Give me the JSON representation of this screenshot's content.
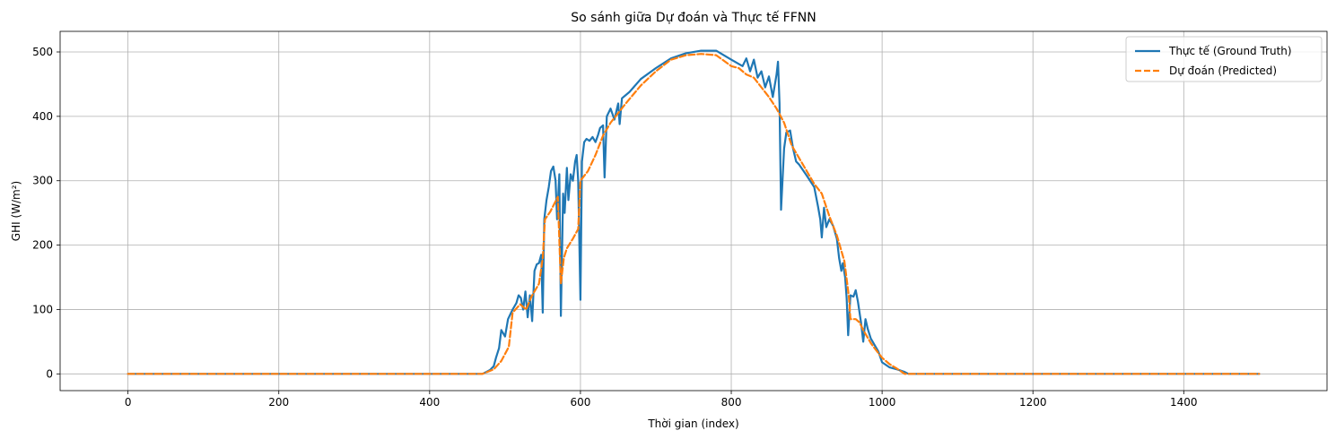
{
  "chart_data": {
    "type": "line",
    "title": "So sánh giữa Dự đoán và Thực tế FFNN",
    "xlabel": "Thời gian (index)",
    "ylabel": "GHI (W/m²)",
    "xlim": [
      -90,
      1590
    ],
    "ylim": [
      -26,
      532
    ],
    "xticks": [
      0,
      200,
      400,
      600,
      800,
      1000,
      1200,
      1400
    ],
    "yticks": [
      0,
      100,
      200,
      300,
      400,
      500
    ],
    "grid": true,
    "legend_position": "top-right",
    "series": [
      {
        "name": "Thực tế (Ground Truth)",
        "color": "#1f77b4",
        "style": "solid",
        "points": [
          [
            0,
            0
          ],
          [
            470,
            0
          ],
          [
            475,
            3
          ],
          [
            480,
            6
          ],
          [
            485,
            12
          ],
          [
            488,
            25
          ],
          [
            492,
            40
          ],
          [
            495,
            68
          ],
          [
            500,
            58
          ],
          [
            504,
            85
          ],
          [
            510,
            100
          ],
          [
            515,
            110
          ],
          [
            518,
            122
          ],
          [
            521,
            118
          ],
          [
            524,
            100
          ],
          [
            527,
            128
          ],
          [
            530,
            88
          ],
          [
            533,
            122
          ],
          [
            536,
            82
          ],
          [
            539,
            160
          ],
          [
            542,
            170
          ],
          [
            545,
            172
          ],
          [
            548,
            185
          ],
          [
            550,
            95
          ],
          [
            552,
            240
          ],
          [
            555,
            270
          ],
          [
            558,
            290
          ],
          [
            561,
            315
          ],
          [
            564,
            322
          ],
          [
            567,
            300
          ],
          [
            569,
            240
          ],
          [
            572,
            310
          ],
          [
            574,
            90
          ],
          [
            577,
            280
          ],
          [
            579,
            250
          ],
          [
            582,
            320
          ],
          [
            584,
            270
          ],
          [
            587,
            310
          ],
          [
            590,
            300
          ],
          [
            593,
            330
          ],
          [
            595,
            340
          ],
          [
            597,
            300
          ],
          [
            600,
            115
          ],
          [
            602,
            330
          ],
          [
            605,
            360
          ],
          [
            608,
            365
          ],
          [
            612,
            362
          ],
          [
            616,
            368
          ],
          [
            620,
            360
          ],
          [
            623,
            370
          ],
          [
            626,
            382
          ],
          [
            630,
            386
          ],
          [
            632,
            305
          ],
          [
            635,
            400
          ],
          [
            640,
            412
          ],
          [
            645,
            395
          ],
          [
            650,
            420
          ],
          [
            652,
            388
          ],
          [
            655,
            428
          ],
          [
            665,
            438
          ],
          [
            680,
            458
          ],
          [
            700,
            475
          ],
          [
            720,
            490
          ],
          [
            740,
            498
          ],
          [
            760,
            502
          ],
          [
            780,
            502
          ],
          [
            800,
            488
          ],
          [
            815,
            478
          ],
          [
            820,
            490
          ],
          [
            825,
            470
          ],
          [
            830,
            488
          ],
          [
            835,
            460
          ],
          [
            840,
            470
          ],
          [
            845,
            445
          ],
          [
            850,
            462
          ],
          [
            855,
            430
          ],
          [
            860,
            465
          ],
          [
            862,
            485
          ],
          [
            864,
            420
          ],
          [
            866,
            255
          ],
          [
            870,
            350
          ],
          [
            873,
            375
          ],
          [
            878,
            378
          ],
          [
            882,
            350
          ],
          [
            886,
            330
          ],
          [
            890,
            325
          ],
          [
            900,
            308
          ],
          [
            910,
            290
          ],
          [
            915,
            260
          ],
          [
            918,
            240
          ],
          [
            920,
            212
          ],
          [
            923,
            258
          ],
          [
            926,
            228
          ],
          [
            930,
            240
          ],
          [
            935,
            230
          ],
          [
            940,
            210
          ],
          [
            943,
            180
          ],
          [
            946,
            160
          ],
          [
            948,
            172
          ],
          [
            951,
            150
          ],
          [
            953,
            118
          ],
          [
            955,
            60
          ],
          [
            958,
            122
          ],
          [
            962,
            120
          ],
          [
            965,
            130
          ],
          [
            968,
            112
          ],
          [
            972,
            80
          ],
          [
            975,
            50
          ],
          [
            978,
            85
          ],
          [
            981,
            70
          ],
          [
            985,
            55
          ],
          [
            990,
            45
          ],
          [
            995,
            35
          ],
          [
            1000,
            18
          ],
          [
            1010,
            10
          ],
          [
            1020,
            7
          ],
          [
            1030,
            3
          ],
          [
            1035,
            0
          ],
          [
            1500,
            0
          ]
        ]
      },
      {
        "name": "Dự đoán (Predicted)",
        "color": "#ff7f0e",
        "style": "dashed",
        "points": [
          [
            0,
            0
          ],
          [
            470,
            0
          ],
          [
            485,
            7
          ],
          [
            495,
            20
          ],
          [
            505,
            42
          ],
          [
            510,
            95
          ],
          [
            520,
            108
          ],
          [
            528,
            100
          ],
          [
            535,
            120
          ],
          [
            545,
            140
          ],
          [
            550,
            180
          ],
          [
            553,
            240
          ],
          [
            560,
            252
          ],
          [
            570,
            275
          ],
          [
            574,
            140
          ],
          [
            578,
            180
          ],
          [
            582,
            195
          ],
          [
            590,
            210
          ],
          [
            597,
            225
          ],
          [
            600,
            300
          ],
          [
            610,
            315
          ],
          [
            620,
            340
          ],
          [
            630,
            370
          ],
          [
            640,
            390
          ],
          [
            660,
            420
          ],
          [
            680,
            448
          ],
          [
            700,
            470
          ],
          [
            720,
            488
          ],
          [
            740,
            495
          ],
          [
            760,
            497
          ],
          [
            780,
            495
          ],
          [
            800,
            478
          ],
          [
            810,
            475
          ],
          [
            820,
            465
          ],
          [
            830,
            460
          ],
          [
            840,
            445
          ],
          [
            850,
            430
          ],
          [
            860,
            412
          ],
          [
            870,
            390
          ],
          [
            880,
            355
          ],
          [
            890,
            335
          ],
          [
            900,
            315
          ],
          [
            910,
            295
          ],
          [
            920,
            280
          ],
          [
            930,
            245
          ],
          [
            940,
            215
          ],
          [
            950,
            175
          ],
          [
            956,
            120
          ],
          [
            958,
            85
          ],
          [
            965,
            85
          ],
          [
            970,
            80
          ],
          [
            975,
            68
          ],
          [
            985,
            48
          ],
          [
            990,
            40
          ],
          [
            1000,
            25
          ],
          [
            1010,
            15
          ],
          [
            1020,
            8
          ],
          [
            1030,
            0
          ],
          [
            1500,
            0
          ]
        ]
      }
    ]
  }
}
